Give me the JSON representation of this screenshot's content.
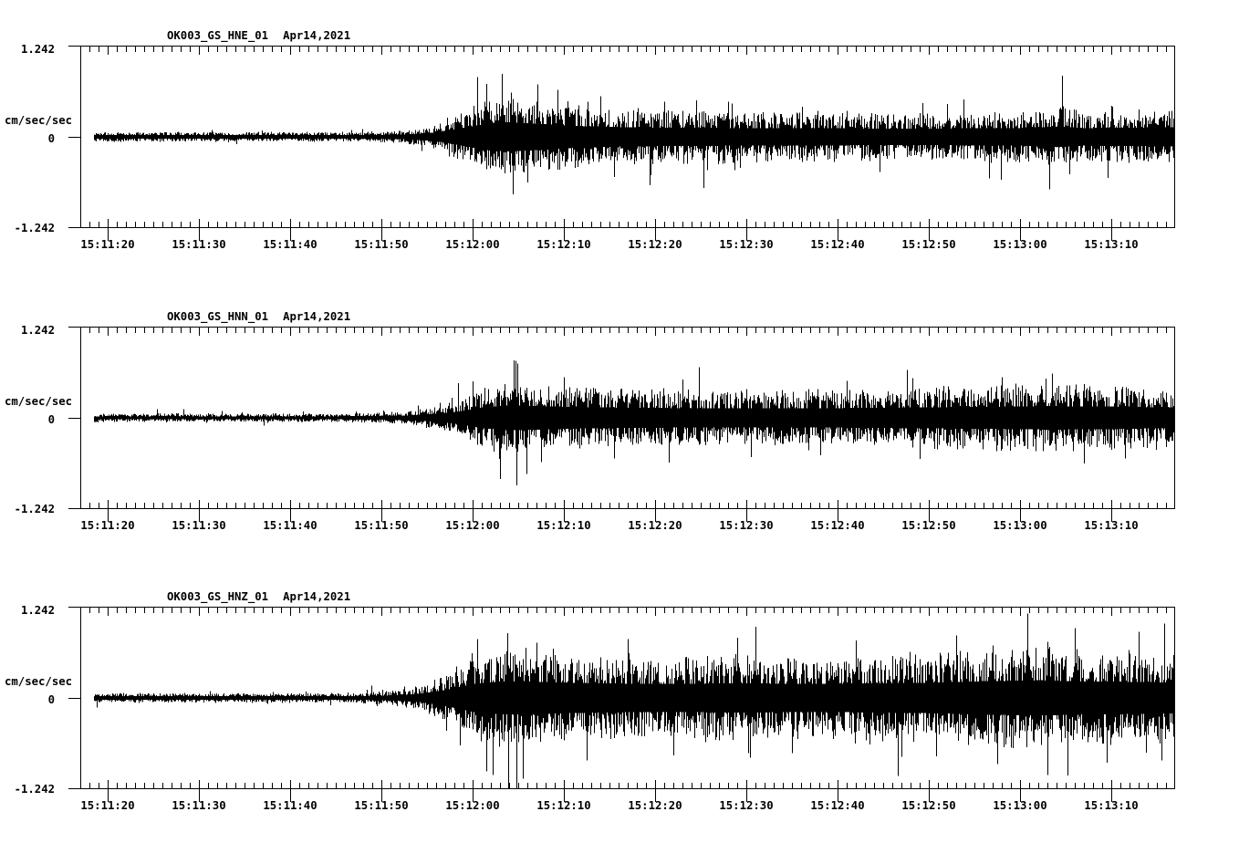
{
  "page": {
    "background_color": "#ffffff",
    "trace_color": "#000000"
  },
  "chart_data": [
    {
      "type": "line",
      "station": "OK003_GS_HNE_01",
      "date": "Apr14,2021",
      "ylabel": "cm/sec/sec",
      "ylim": [
        -1.242,
        1.242
      ],
      "y_tick_labels": [
        "1.242",
        "0",
        "-1.242"
      ],
      "time_start": "15:11:17",
      "time_end": "15:13:17",
      "duration_sec": 120,
      "x_tick_labels": [
        "15:11:20",
        "15:11:30",
        "15:11:40",
        "15:11:50",
        "15:12:00",
        "15:12:10",
        "15:12:20",
        "15:12:30",
        "15:12:40",
        "15:12:50",
        "15:13:00",
        "15:13:10"
      ],
      "envelope": [
        [
          0,
          0.045
        ],
        [
          28,
          0.045
        ],
        [
          32,
          0.05
        ],
        [
          36,
          0.07
        ],
        [
          39,
          0.12
        ],
        [
          42,
          0.25
        ],
        [
          45,
          0.38
        ],
        [
          47,
          0.4
        ],
        [
          50,
          0.36
        ],
        [
          54,
          0.3
        ],
        [
          58,
          0.27
        ],
        [
          64,
          0.25
        ],
        [
          72,
          0.24
        ],
        [
          80,
          0.24
        ],
        [
          88,
          0.22
        ],
        [
          96,
          0.23
        ],
        [
          103,
          0.24
        ],
        [
          107,
          0.28
        ],
        [
          110,
          0.24
        ],
        [
          115,
          0.25
        ],
        [
          120,
          0.26
        ]
      ],
      "spikes": [
        [
          44.5,
          0.72
        ],
        [
          46.2,
          0.86
        ],
        [
          47.4,
          -0.78
        ],
        [
          49.0,
          -0.62
        ],
        [
          52.3,
          0.64
        ],
        [
          57.0,
          0.55
        ],
        [
          62.5,
          -0.52
        ],
        [
          71.0,
          0.48
        ],
        [
          95.0,
          0.45
        ],
        [
          107.6,
          0.83
        ],
        [
          113.0,
          0.42
        ]
      ],
      "seed": 11
    },
    {
      "type": "line",
      "station": "OK003_GS_HNN_01",
      "date": "Apr14,2021",
      "ylabel": "cm/sec/sec",
      "ylim": [
        -1.242,
        1.242
      ],
      "y_tick_labels": [
        "1.242",
        "0",
        "-1.242"
      ],
      "time_start": "15:11:17",
      "time_end": "15:13:17",
      "duration_sec": 120,
      "x_tick_labels": [
        "15:11:20",
        "15:11:30",
        "15:11:40",
        "15:11:50",
        "15:12:00",
        "15:12:10",
        "15:12:20",
        "15:12:30",
        "15:12:40",
        "15:12:50",
        "15:13:00",
        "15:13:10"
      ],
      "envelope": [
        [
          0,
          0.04
        ],
        [
          26,
          0.04
        ],
        [
          31,
          0.045
        ],
        [
          35,
          0.06
        ],
        [
          38,
          0.09
        ],
        [
          41,
          0.16
        ],
        [
          44,
          0.28
        ],
        [
          47,
          0.34
        ],
        [
          50,
          0.32
        ],
        [
          55,
          0.29
        ],
        [
          62,
          0.27
        ],
        [
          70,
          0.26
        ],
        [
          78,
          0.26
        ],
        [
          86,
          0.27
        ],
        [
          94,
          0.29
        ],
        [
          100,
          0.3
        ],
        [
          106,
          0.32
        ],
        [
          112,
          0.31
        ],
        [
          117,
          0.29
        ],
        [
          120,
          0.29
        ]
      ],
      "spikes": [
        [
          46.0,
          -0.83
        ],
        [
          47.5,
          0.78
        ],
        [
          47.8,
          -0.92
        ],
        [
          50.5,
          -0.6
        ],
        [
          53.0,
          0.55
        ],
        [
          58.5,
          -0.55
        ],
        [
          66.0,
          0.52
        ],
        [
          84.0,
          0.5
        ],
        [
          101.0,
          0.55
        ],
        [
          106.5,
          0.6
        ],
        [
          110.0,
          -0.62
        ],
        [
          114.5,
          -0.55
        ]
      ],
      "seed": 22
    },
    {
      "type": "line",
      "station": "OK003_GS_HNZ_01",
      "date": "Apr14,2021",
      "ylabel": "cm/sec/sec",
      "ylim": [
        -1.242,
        1.242
      ],
      "y_tick_labels": [
        "1.242",
        "0",
        "-1.242"
      ],
      "time_start": "15:11:17",
      "time_end": "15:13:17",
      "duration_sec": 120,
      "x_tick_labels": [
        "15:11:20",
        "15:11:30",
        "15:11:40",
        "15:11:50",
        "15:12:00",
        "15:12:10",
        "15:12:20",
        "15:12:30",
        "15:12:40",
        "15:12:50",
        "15:13:00",
        "15:13:10"
      ],
      "envelope": [
        [
          0,
          0.045
        ],
        [
          27,
          0.045
        ],
        [
          31,
          0.05
        ],
        [
          34,
          0.07
        ],
        [
          37,
          0.11
        ],
        [
          40,
          0.22
        ],
        [
          43,
          0.38
        ],
        [
          46,
          0.45
        ],
        [
          50,
          0.44
        ],
        [
          56,
          0.4
        ],
        [
          64,
          0.38
        ],
        [
          72,
          0.4
        ],
        [
          80,
          0.38
        ],
        [
          88,
          0.4
        ],
        [
          94,
          0.42
        ],
        [
          100,
          0.46
        ],
        [
          105,
          0.48
        ],
        [
          110,
          0.45
        ],
        [
          115,
          0.44
        ],
        [
          120,
          0.42
        ]
      ],
      "spikes": [
        [
          43.5,
          0.8
        ],
        [
          45.2,
          -1.05
        ],
        [
          46.8,
          0.88
        ],
        [
          48.5,
          -1.1
        ],
        [
          50.0,
          0.75
        ],
        [
          55.5,
          -0.85
        ],
        [
          60.0,
          0.8
        ],
        [
          65.0,
          -0.78
        ],
        [
          72.0,
          0.82
        ],
        [
          78.0,
          -0.75
        ],
        [
          85.0,
          0.78
        ],
        [
          90.0,
          -0.8
        ],
        [
          96.0,
          0.85
        ],
        [
          100.5,
          -0.9
        ],
        [
          103.8,
          1.15
        ],
        [
          106.0,
          -1.05
        ],
        [
          109.0,
          0.95
        ],
        [
          112.5,
          -0.88
        ],
        [
          116.0,
          0.9
        ],
        [
          118.5,
          -0.85
        ]
      ],
      "seed": 33
    }
  ]
}
